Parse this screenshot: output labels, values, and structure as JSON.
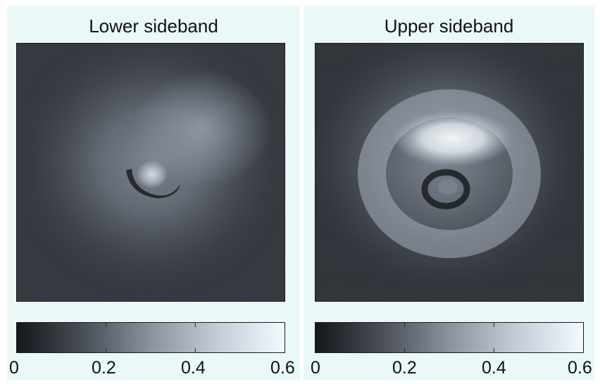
{
  "chart_data": [
    {
      "type": "heatmap",
      "title": "Lower sideband",
      "colorbar": {
        "range": [
          0,
          0.6
        ],
        "ticks": [
          "0",
          "0.2",
          "0.4",
          "0.6"
        ]
      },
      "colormap": [
        "#15171b",
        "#4a4f58",
        "#8a929e",
        "#c3ccd7",
        "#f3f9ff"
      ],
      "features": [
        {
          "kind": "ring",
          "peak": 0.3,
          "note": "broad diffuse ring"
        },
        {
          "kind": "core",
          "peak": 0.45,
          "note": "small bright spot with dark crescent"
        }
      ]
    },
    {
      "type": "heatmap",
      "title": "Upper sideband",
      "colorbar": {
        "range": [
          0,
          0.6
        ],
        "ticks": [
          "0",
          "0.2",
          "0.4",
          "0.6"
        ]
      },
      "colormap": [
        "#15171b",
        "#4a4f58",
        "#8a929e",
        "#c3ccd7",
        "#f3f9ff"
      ],
      "features": [
        {
          "kind": "ring",
          "peak": 0.55,
          "note": "bright ring, strongest at top"
        },
        {
          "kind": "core",
          "peak": 0.1,
          "note": "dark ring surrounding center"
        }
      ]
    }
  ]
}
